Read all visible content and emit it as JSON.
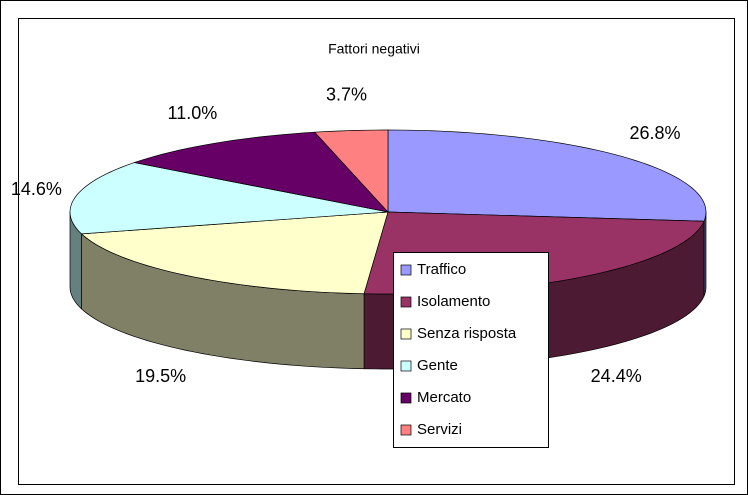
{
  "chart_data": {
    "type": "pie3d",
    "title": "Fattori negativi",
    "categories": [
      "Traffico",
      "Isolamento",
      "Senza risposta",
      "Gente",
      "Mercato",
      "Servizi"
    ],
    "values": [
      26.8,
      24.4,
      19.5,
      14.6,
      11.0,
      3.7
    ],
    "value_labels": [
      "26.8%",
      "24.4%",
      "19.5%",
      "14.6%",
      "11.0%",
      "3.7%"
    ],
    "colors": [
      "#9999ff",
      "#993366",
      "#ffffcc",
      "#ccffff",
      "#660066",
      "#ff8080"
    ],
    "legend": "right"
  }
}
